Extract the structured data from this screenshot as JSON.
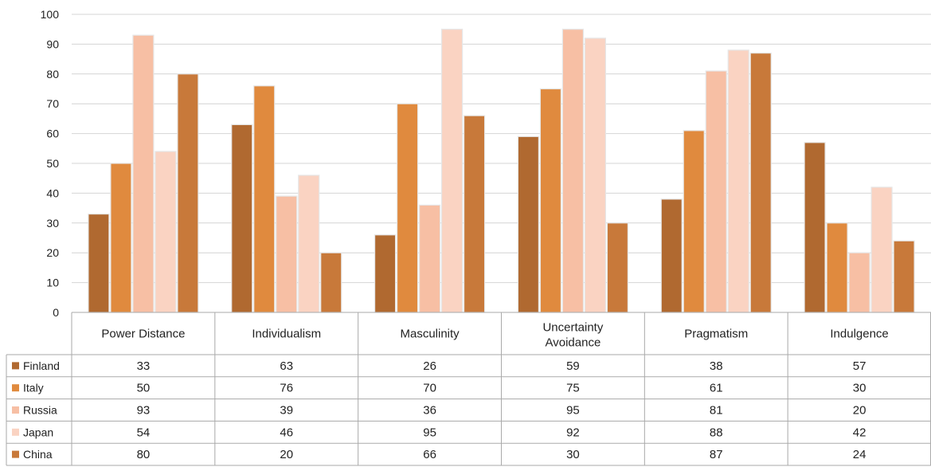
{
  "chart_data": {
    "type": "bar",
    "title": "",
    "xlabel": "",
    "ylabel": "",
    "ylim": [
      0,
      100
    ],
    "yticks": [
      0,
      10,
      20,
      30,
      40,
      50,
      60,
      70,
      80,
      90,
      100
    ],
    "grid": true,
    "legend_placement": "data-table-below",
    "categories": [
      "Power Distance",
      "Individualism",
      "Masculinity",
      "Uncertainty Avoidance",
      "Pragmatism",
      "Indulgence"
    ],
    "series": [
      {
        "name": "Finland",
        "color": "#b06930",
        "values": [
          33,
          63,
          26,
          59,
          38,
          57
        ]
      },
      {
        "name": "Italy",
        "color": "#e08a3e",
        "values": [
          50,
          76,
          70,
          75,
          61,
          30
        ]
      },
      {
        "name": "Russia",
        "color": "#f7bfa4",
        "values": [
          93,
          39,
          36,
          95,
          81,
          20
        ]
      },
      {
        "name": "Japan",
        "color": "#fad3c2",
        "values": [
          54,
          46,
          95,
          92,
          88,
          42
        ]
      },
      {
        "name": "China",
        "color": "#c8793a",
        "values": [
          80,
          20,
          66,
          30,
          87,
          24
        ]
      }
    ]
  }
}
